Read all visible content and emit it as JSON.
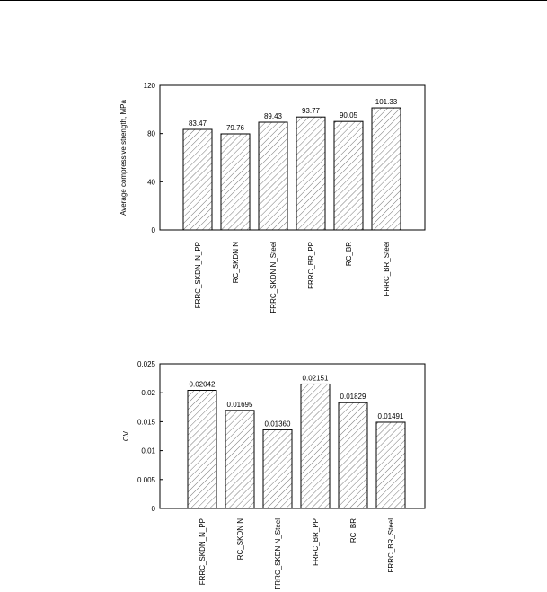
{
  "chart_data": [
    {
      "type": "bar",
      "categories": [
        "FRRC_SKDN_N_PP",
        "RC_SKDN N",
        "FRRC_SKDN N_Steel",
        "FRRC_BR_PP",
        "RC_BR",
        "FRRC_BR_Steel"
      ],
      "values": [
        83.47,
        79.76,
        89.43,
        93.77,
        90.05,
        101.33
      ],
      "value_labels": [
        "83.47",
        "79.76",
        "89.43",
        "93.77",
        "90.05",
        "101.33"
      ],
      "ylabel": "Average compressive strength, MPa",
      "ylim": [
        0,
        120
      ],
      "yticks": [
        "0",
        "40",
        "80",
        "120"
      ],
      "ytick_values": [
        0,
        40,
        80,
        120
      ],
      "grid": false
    },
    {
      "type": "bar",
      "categories": [
        "FRRC_SKDN_N_PP",
        "RC_SKDN N",
        "FRRC_SKDN N_Steel",
        "FRRC_BR_PP",
        "RC_BR",
        "FRRC_BR_Steel"
      ],
      "values": [
        0.02042,
        0.01695,
        0.0136,
        0.02151,
        0.01829,
        0.01491
      ],
      "value_labels": [
        "0.02042",
        "0.01695",
        "0.01360",
        "0.02151",
        "0.01829",
        "0.01491"
      ],
      "ylabel": "CV",
      "ylim": [
        0,
        0.025
      ],
      "yticks": [
        "0",
        "0.005",
        "0.01",
        "0.015",
        "0.02",
        "0.025"
      ],
      "ytick_values": [
        0,
        0.005,
        0.01,
        0.015,
        0.02,
        0.025
      ],
      "grid": false
    }
  ]
}
